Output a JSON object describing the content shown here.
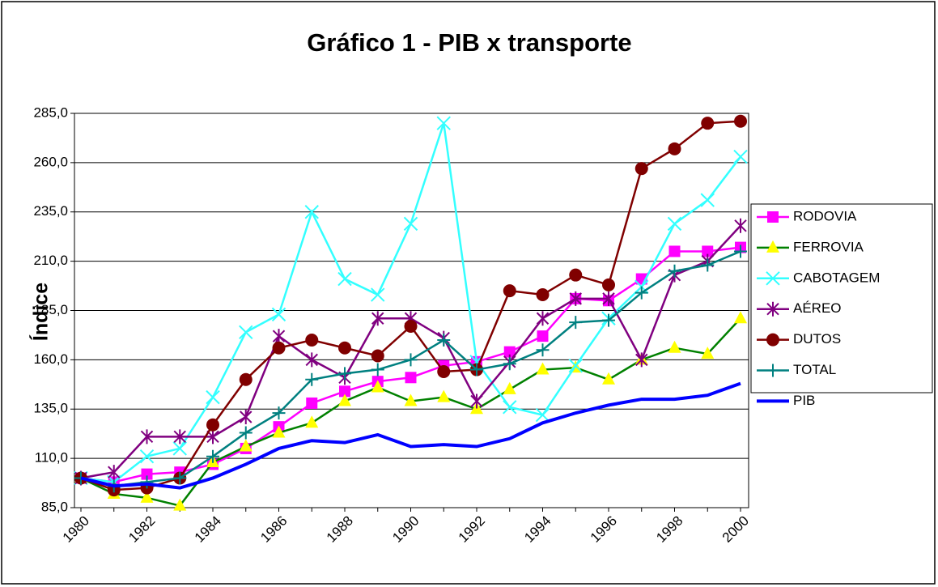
{
  "chart_data": {
    "type": "line",
    "title": "Gráfico 1 - PIB x transporte",
    "y_label": "Índice",
    "categories": [
      "1980",
      null,
      "1982",
      null,
      "1984",
      null,
      "1986",
      null,
      "1988",
      null,
      "1990",
      null,
      "1992",
      null,
      "1994",
      null,
      "1996",
      null,
      "1998",
      null,
      "2000"
    ],
    "ylim": [
      85,
      285
    ],
    "yticks": [
      {
        "value": 85,
        "label": "85,0"
      },
      {
        "value": 110,
        "label": "110,0"
      },
      {
        "value": 135,
        "label": "135,0"
      },
      {
        "value": 160,
        "label": "160,0"
      },
      {
        "value": 185,
        "label": "185,0"
      },
      {
        "value": 210,
        "label": "210,0"
      },
      {
        "value": 235,
        "label": "235,0"
      },
      {
        "value": 260,
        "label": "260,0"
      },
      {
        "value": 285,
        "label": "285,0"
      }
    ],
    "grid": true,
    "legend": "right",
    "series": [
      {
        "name": "RODOVIA",
        "color": "#ff00ff",
        "marker": "square",
        "values": [
          100,
          98,
          102,
          103,
          107,
          115,
          126,
          138,
          144,
          149,
          151,
          157,
          159,
          164,
          172,
          191,
          190,
          201,
          215,
          215,
          217
        ]
      },
      {
        "name": "FERROVIA",
        "color": "#008000",
        "marker": "triangle",
        "marker_color": "#ffff00",
        "values": [
          100,
          92,
          90,
          86,
          108,
          116,
          123,
          128,
          139,
          146,
          139,
          141,
          135,
          145,
          155,
          156,
          150,
          160,
          166,
          163,
          181
        ]
      },
      {
        "name": "CABOTAGEM",
        "color": "#33ffff",
        "marker": "x",
        "values": [
          100,
          98,
          111,
          115,
          141,
          174,
          183,
          235,
          201,
          193,
          229,
          280,
          159,
          136,
          132,
          157,
          181,
          197,
          229,
          241,
          263
        ]
      },
      {
        "name": "AÉREO",
        "color": "#800080",
        "marker": "asterisk",
        "values": [
          100,
          103,
          121,
          121,
          121,
          131,
          172,
          160,
          151,
          181,
          181,
          171,
          139,
          159,
          181,
          191,
          191,
          160,
          203,
          210,
          228
        ]
      },
      {
        "name": "DUTOS",
        "color": "#800000",
        "marker": "circle",
        "values": [
          100,
          94,
          95,
          100,
          127,
          150,
          166,
          170,
          166,
          162,
          177,
          154,
          155,
          195,
          193,
          203,
          198,
          257,
          267,
          280,
          281
        ]
      },
      {
        "name": "TOTAL",
        "color": "#008080",
        "marker": "plus",
        "values": [
          100,
          96,
          98,
          100,
          111,
          123,
          133,
          150,
          153,
          155,
          160,
          170,
          155,
          158,
          165,
          179,
          180,
          194,
          205,
          208,
          215
        ]
      },
      {
        "name": "PIB",
        "color": "#0000ff",
        "marker": "none",
        "values": [
          100,
          96,
          97,
          95,
          100,
          107,
          115,
          119,
          118,
          122,
          116,
          117,
          116,
          120,
          128,
          133,
          137,
          140,
          140,
          142,
          148
        ]
      }
    ]
  }
}
